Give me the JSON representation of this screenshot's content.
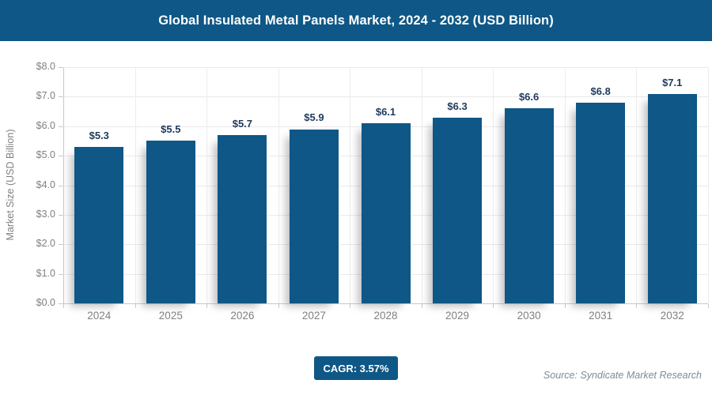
{
  "header": {
    "title": "Global Insulated Metal Panels Market, 2024 - 2032 (USD Billion)"
  },
  "colors": {
    "brand_blue": "#0e5786",
    "bar": "#0e5786",
    "value_label": "#1f3a5c",
    "axis_text": "#808080",
    "gridline": "#e9e9e9",
    "source_text": "#7e8b97"
  },
  "chart_data": {
    "type": "bar",
    "title": "Global Insulated Metal Panels Market, 2024 - 2032 (USD Billion)",
    "categories": [
      "2024",
      "2025",
      "2026",
      "2027",
      "2028",
      "2029",
      "2030",
      "2031",
      "2032"
    ],
    "values": [
      5.3,
      5.5,
      5.7,
      5.9,
      6.1,
      6.3,
      6.6,
      6.8,
      7.1
    ],
    "value_labels": [
      "$5.3",
      "$5.5",
      "$5.7",
      "$5.9",
      "$6.1",
      "$6.3",
      "$6.6",
      "$6.8",
      "$7.1"
    ],
    "xlabel": "",
    "ylabel": "Market Size (USD Billion)",
    "ylim": [
      0,
      8
    ],
    "ytick_step": 1.0,
    "ytick_labels": [
      "$0.0",
      "$1.0",
      "$2.0",
      "$3.0",
      "$4.0",
      "$5.0",
      "$6.0",
      "$7.0",
      "$8.0"
    ],
    "grid": true,
    "legend": false
  },
  "footer": {
    "cagr_label": "CAGR: 3.57%",
    "source": "Source: Syndicate Market Research"
  }
}
